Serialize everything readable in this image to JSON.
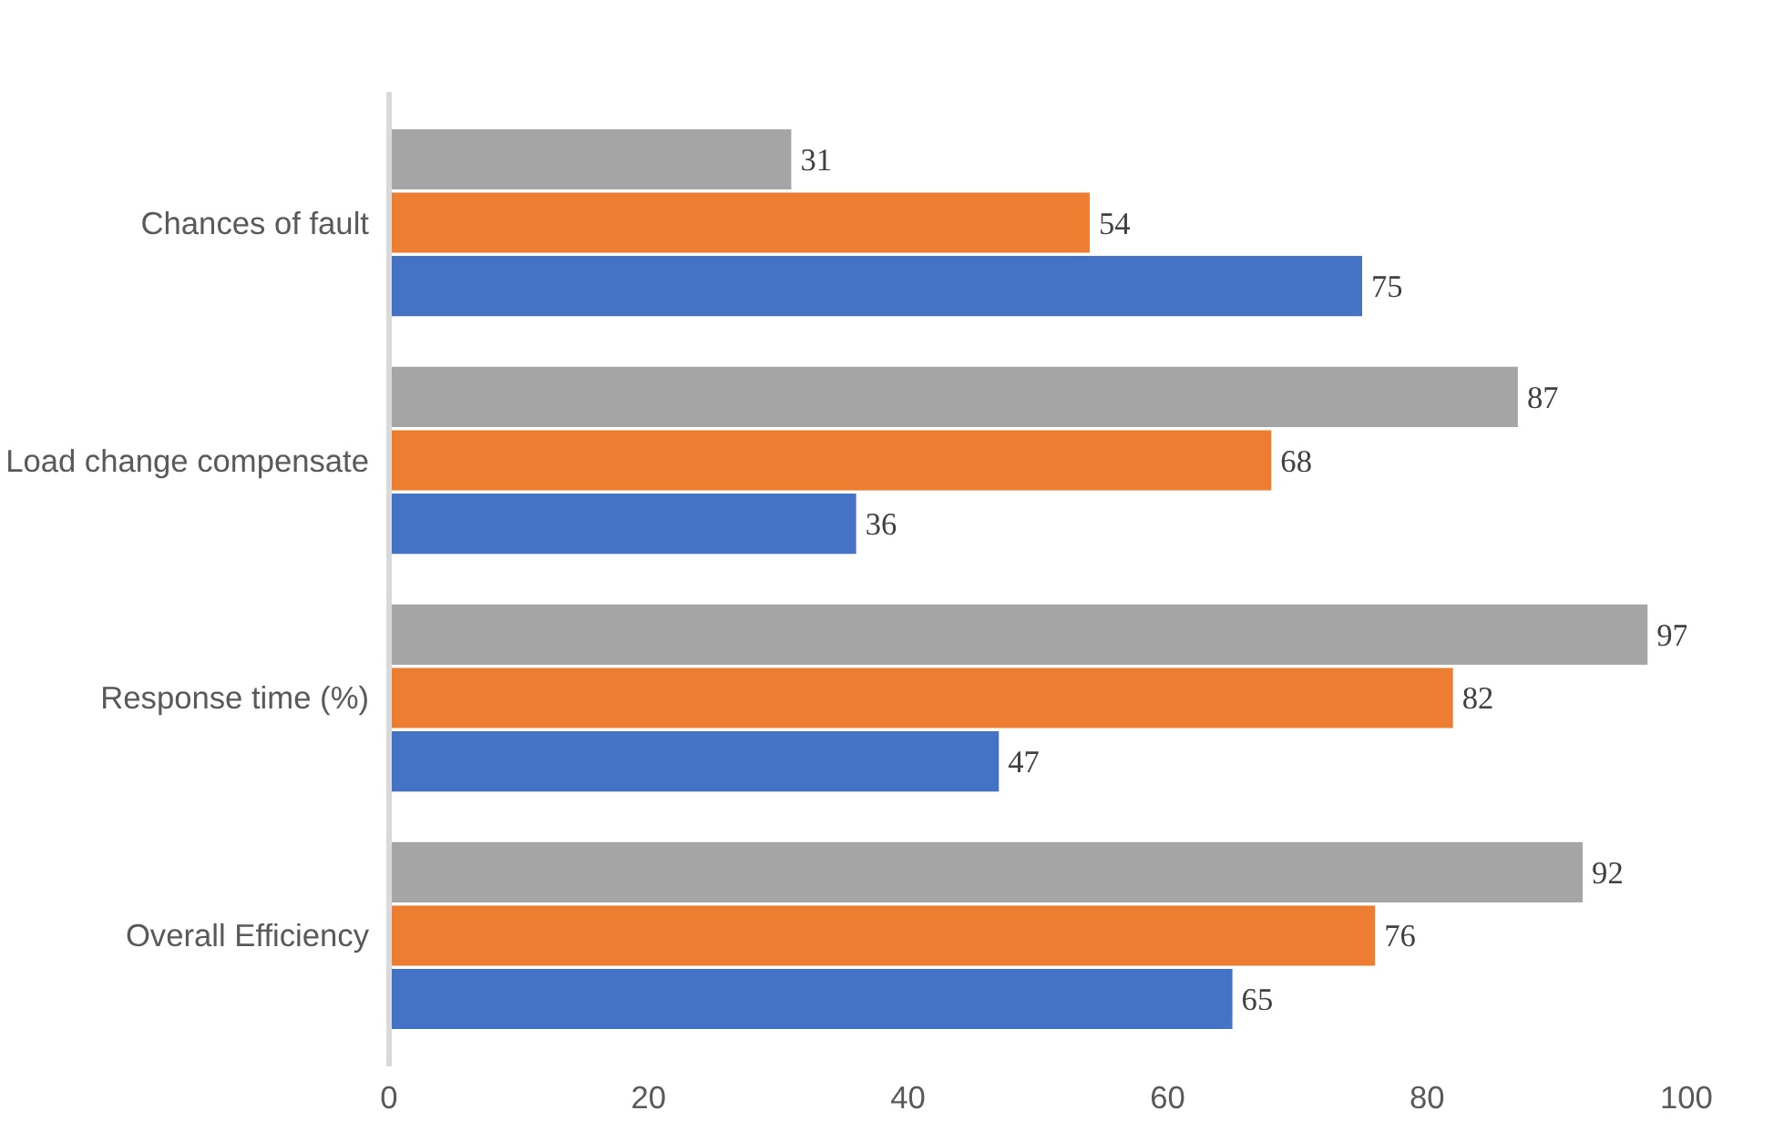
{
  "chart_data": {
    "type": "bar",
    "orientation": "horizontal",
    "categories": [
      "Chances of fault",
      "Load change compensate",
      "Response time (%)",
      "Overall Efficiency"
    ],
    "series": [
      {
        "color": "#4472c4",
        "values": [
          75,
          36,
          47,
          65
        ]
      },
      {
        "color": "#ed7d31",
        "values": [
          54,
          68,
          82,
          76
        ]
      },
      {
        "color": "#a5a5a5",
        "values": [
          31,
          87,
          97,
          92
        ]
      }
    ],
    "xlim": [
      0,
      100
    ],
    "xticks": [
      0,
      20,
      40,
      60,
      80,
      100
    ],
    "data_labels": true,
    "grid": false
  }
}
